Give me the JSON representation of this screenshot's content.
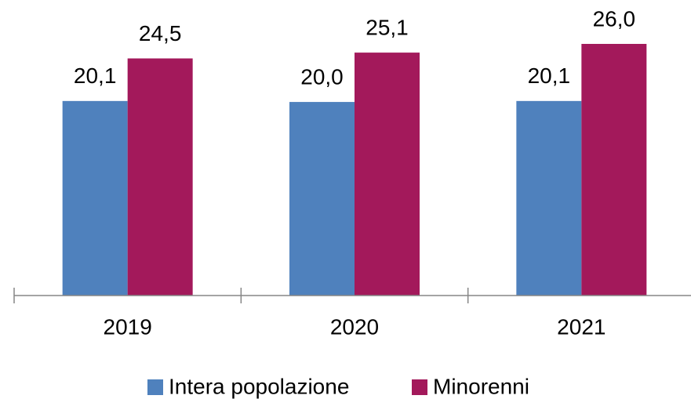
{
  "chart_data": {
    "type": "bar",
    "categories": [
      "2019",
      "2020",
      "2021"
    ],
    "series": [
      {
        "name": "Intera popolazione",
        "color": "#4f81bd",
        "values": [
          20.1,
          20.0,
          20.1
        ],
        "value_labels": [
          "20,1",
          "20,0",
          "20,1"
        ]
      },
      {
        "name": "Minorenni",
        "color": "#a3195b",
        "values": [
          24.5,
          25.1,
          26.0
        ],
        "value_labels": [
          "24,5",
          "25,1",
          "26,0"
        ]
      }
    ],
    "legend": "bottom"
  }
}
